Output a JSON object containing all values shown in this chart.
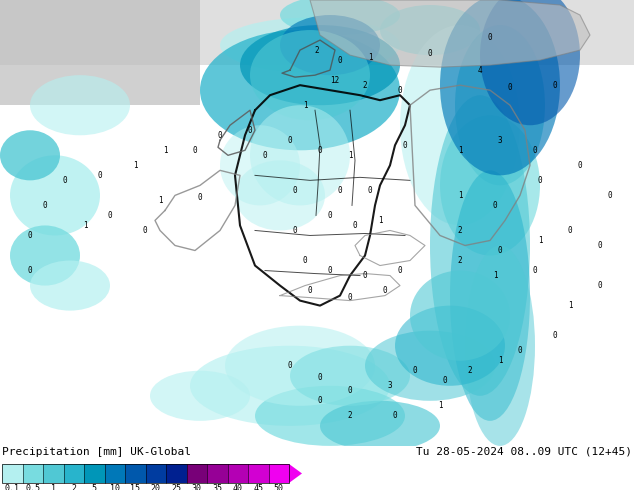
{
  "title_left": "Precipitation [mm] UK-Global",
  "title_right": "Tu 28-05-2024 08..09 UTC (12+45)",
  "colorbar_labels": [
    "0.1",
    "0.5",
    "1",
    "2",
    "5",
    "10",
    "15",
    "20",
    "25",
    "30",
    "35",
    "40",
    "45",
    "50"
  ],
  "colorbar_colors": [
    "#b4f0f0",
    "#78dce0",
    "#50c8d4",
    "#28b4cc",
    "#0096b8",
    "#0078b8",
    "#0058ac",
    "#003ca0",
    "#002090",
    "#780078",
    "#960096",
    "#b400b4",
    "#d200d2",
    "#f000f0"
  ],
  "bg_land_color": "#c8e896",
  "bg_sea_color": "#d0d0d0",
  "bg_ocean_color": "#b0b0b0",
  "precip_light": "#b4f0f0",
  "precip_med": "#50c8d4",
  "precip_dark": "#0078b8",
  "fig_width": 6.34,
  "fig_height": 4.9,
  "dpi": 100,
  "label_fontsize": 7.0,
  "title_fontsize": 8.0
}
